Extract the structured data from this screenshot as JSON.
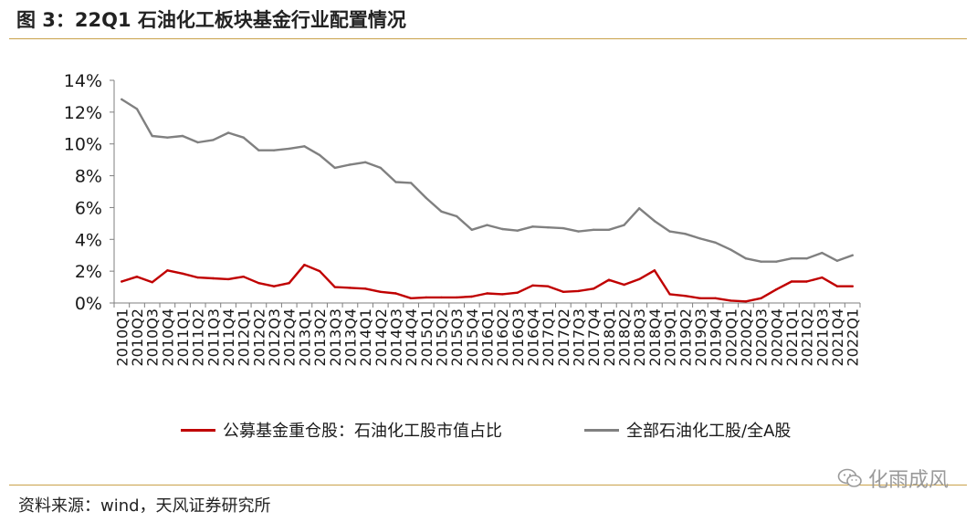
{
  "figure": {
    "title": "图 3：22Q1 石油化工板块基金行业配置情况",
    "source": "资料来源：wind，天风证券研究所",
    "watermark": "化雨成风",
    "watermark_icon": "wechat-icon"
  },
  "colors": {
    "fund": "#c00000",
    "share": "#808080",
    "rule": "#c9a14a"
  },
  "chart_data": {
    "type": "line",
    "title": "",
    "xlabel": "",
    "ylabel": "",
    "ylim": [
      0,
      14
    ],
    "yticks": [
      "0%",
      "2%",
      "4%",
      "6%",
      "8%",
      "10%",
      "12%",
      "14%"
    ],
    "grid": false,
    "legend_position": "bottom",
    "categories": [
      "2010Q1",
      "2010Q2",
      "2010Q3",
      "2010Q4",
      "2011Q1",
      "2011Q2",
      "2011Q3",
      "2011Q4",
      "2012Q1",
      "2012Q2",
      "2012Q3",
      "2012Q4",
      "2013Q1",
      "2013Q2",
      "2013Q3",
      "2013Q4",
      "2014Q1",
      "2014Q2",
      "2014Q3",
      "2014Q4",
      "2015Q1",
      "2015Q2",
      "2015Q3",
      "2015Q4",
      "2016Q1",
      "2016Q2",
      "2016Q3",
      "2016Q4",
      "2017Q1",
      "2017Q2",
      "2017Q3",
      "2017Q4",
      "2018Q1",
      "2018Q2",
      "2018Q3",
      "2018Q4",
      "2019Q1",
      "2019Q2",
      "2019Q3",
      "2019Q4",
      "2020Q1",
      "2020Q2",
      "2020Q3",
      "2020Q4",
      "2021Q1",
      "2021Q2",
      "2021Q3",
      "2021Q4",
      "2022Q1"
    ],
    "series": [
      {
        "name": "公募基金重仓股：石油化工股市值占比",
        "color": "#c00000",
        "values": [
          1.35,
          1.65,
          1.3,
          2.05,
          1.85,
          1.6,
          1.55,
          1.5,
          1.65,
          1.25,
          1.05,
          1.25,
          2.4,
          2.0,
          1.0,
          0.95,
          0.9,
          0.7,
          0.6,
          0.3,
          0.35,
          0.35,
          0.35,
          0.4,
          0.6,
          0.55,
          0.65,
          1.1,
          1.05,
          0.7,
          0.75,
          0.9,
          1.45,
          1.15,
          1.5,
          2.05,
          0.55,
          0.45,
          0.3,
          0.3,
          0.15,
          0.1,
          0.3,
          0.85,
          1.35,
          1.35,
          1.6,
          1.05,
          1.05
        ]
      },
      {
        "name": "全部石油化工股/全A股",
        "color": "#808080",
        "values": [
          12.8,
          12.2,
          10.5,
          10.4,
          10.5,
          10.1,
          10.25,
          10.7,
          10.4,
          9.6,
          9.6,
          9.7,
          9.85,
          9.3,
          8.5,
          8.7,
          8.85,
          8.5,
          7.6,
          7.55,
          6.6,
          5.75,
          5.45,
          4.6,
          4.9,
          4.65,
          4.55,
          4.8,
          4.75,
          4.7,
          4.5,
          4.6,
          4.6,
          4.9,
          5.95,
          5.15,
          4.5,
          4.35,
          4.05,
          3.8,
          3.35,
          2.8,
          2.6,
          2.6,
          2.8,
          2.8,
          3.15,
          2.65,
          3.0
        ]
      }
    ]
  }
}
